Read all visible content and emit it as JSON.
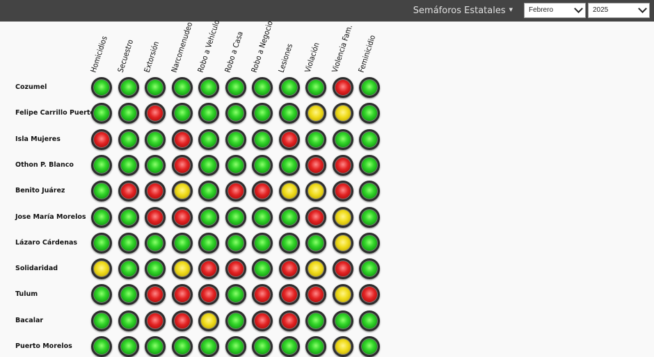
{
  "header": {
    "menu_title": "Semáforos Estatales",
    "month": "Febrero",
    "year": "2025"
  },
  "columns": [
    "Homicidios",
    "Secuestro",
    "Extorsión",
    "Narcomenudeo",
    "Robo a Vehículo",
    "Robo a Casa",
    "Robo a Negocio",
    "Lesiones",
    "Violación",
    "Violencia Fam.",
    "Feminicidio"
  ],
  "rows": [
    {
      "name": "Cozumel",
      "lights": [
        "green",
        "green",
        "green",
        "green",
        "green",
        "green",
        "green",
        "green",
        "green",
        "red",
        "green"
      ]
    },
    {
      "name": "Felipe Carrillo Puerto",
      "lights": [
        "green",
        "green",
        "red",
        "green",
        "green",
        "green",
        "green",
        "green",
        "yellow",
        "yellow",
        "green"
      ]
    },
    {
      "name": "Isla Mujeres",
      "lights": [
        "red",
        "green",
        "green",
        "red",
        "green",
        "green",
        "green",
        "red",
        "green",
        "green",
        "green"
      ]
    },
    {
      "name": "Othon P. Blanco",
      "lights": [
        "green",
        "green",
        "green",
        "red",
        "green",
        "green",
        "green",
        "green",
        "red",
        "red",
        "green"
      ]
    },
    {
      "name": "Benito Juárez",
      "lights": [
        "green",
        "red",
        "red",
        "yellow",
        "green",
        "red",
        "red",
        "yellow",
        "yellow",
        "red",
        "green"
      ]
    },
    {
      "name": "Jose María Morelos",
      "lights": [
        "green",
        "green",
        "red",
        "red",
        "green",
        "green",
        "green",
        "green",
        "red",
        "yellow",
        "green"
      ]
    },
    {
      "name": "Lázaro Cárdenas",
      "lights": [
        "green",
        "green",
        "green",
        "green",
        "green",
        "green",
        "green",
        "green",
        "green",
        "yellow",
        "green"
      ]
    },
    {
      "name": "Solidaridad",
      "lights": [
        "yellow",
        "green",
        "green",
        "yellow",
        "red",
        "red",
        "green",
        "red",
        "yellow",
        "red",
        "green"
      ]
    },
    {
      "name": "Tulum",
      "lights": [
        "green",
        "green",
        "red",
        "red",
        "red",
        "green",
        "red",
        "red",
        "red",
        "yellow",
        "red"
      ]
    },
    {
      "name": "Bacalar",
      "lights": [
        "green",
        "green",
        "red",
        "red",
        "yellow",
        "green",
        "red",
        "red",
        "green",
        "green",
        "green"
      ]
    },
    {
      "name": "Puerto Morelos",
      "lights": [
        "green",
        "green",
        "green",
        "green",
        "green",
        "green",
        "green",
        "green",
        "green",
        "yellow",
        "green"
      ]
    }
  ],
  "colors": {
    "header_bg": "#444444",
    "green": "#22c41a",
    "red": "#d41a1a",
    "yellow": "#e8d214"
  }
}
